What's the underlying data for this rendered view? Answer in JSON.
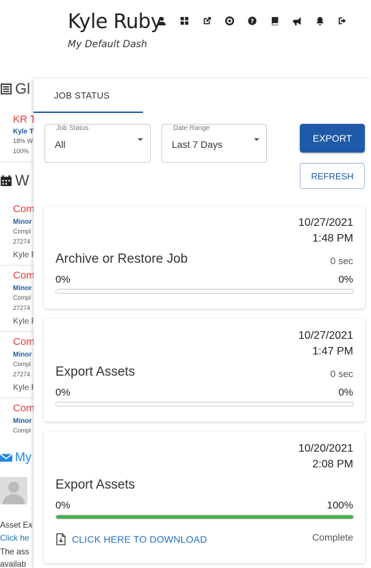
{
  "header": {
    "user_name": "Kyle Ruby",
    "dashboard_name": "My Default Dash",
    "icons": [
      "user-icon",
      "grid-icon",
      "external-link-icon",
      "life-ring-icon",
      "help-icon",
      "book-icon",
      "bullhorn-icon",
      "bell-icon",
      "sign-out-icon"
    ]
  },
  "background": {
    "section1_title": "Gl",
    "item1_title": "KR T",
    "item1_sub": "Kyle Te",
    "item1_line1": "18% W",
    "item1_line2": "100%",
    "section2_title": "W",
    "rows": [
      {
        "title": "Com",
        "sub": "Minor",
        "line1": "Compl",
        "line2": "27274",
        "user": "Kyle R"
      },
      {
        "title": "Com",
        "sub": "Minor",
        "line1": "Compl",
        "line2": "27274",
        "user": "Kyle R"
      },
      {
        "title": "Com",
        "sub": "Minor",
        "line1": "Compl",
        "line2": "27274",
        "user": "Kyle R"
      },
      {
        "title": "Com",
        "sub": "Minor",
        "line1": "Compl",
        "line2": "",
        "user": ""
      }
    ],
    "section3_title": "My",
    "text1": "Asset Ex",
    "link1": "Click he",
    "text2": "The ass",
    "text3": "availab"
  },
  "panel": {
    "tab_label": "JOB STATUS",
    "job_status_select": {
      "label": "Job Status",
      "value": "All"
    },
    "date_range_select": {
      "label": "Date Range",
      "value": "Last 7 Days"
    },
    "export_button": "EXPORT",
    "refresh_button": "REFRESH",
    "progress_color": "#4caf50",
    "accent_color": "#1e5aa8",
    "jobs": [
      {
        "date": "10/27/2021",
        "time": "1:48 PM",
        "name": "Archive or Restore Job",
        "duration": "0 sec",
        "progress_left": "0%",
        "progress_right": "0%",
        "progress": 0
      },
      {
        "date": "10/27/2021",
        "time": "1:47 PM",
        "name": "Export Assets",
        "duration": "0 sec",
        "progress_left": "0%",
        "progress_right": "0%",
        "progress": 0
      },
      {
        "date": "10/20/2021",
        "time": "2:08 PM",
        "name": "Export Assets",
        "duration": "",
        "progress_left": "0%",
        "progress_right": "100%",
        "progress": 1,
        "download_label": "CLICK HERE TO DOWNLOAD",
        "status": "Complete"
      }
    ]
  }
}
